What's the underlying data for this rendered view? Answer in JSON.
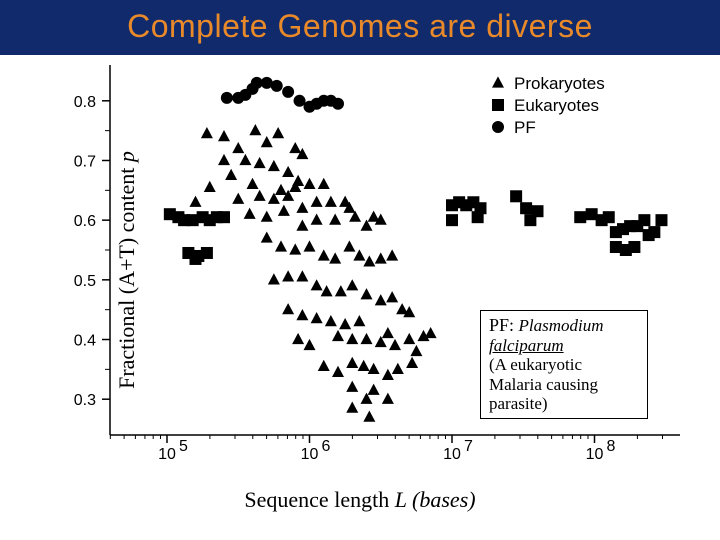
{
  "title": "Complete Genomes are diverse",
  "title_color": "#e98a2a",
  "title_bg": "#102a6b",
  "ylabel_a": "Fractional (A+T) content ",
  "ylabel_b": "p",
  "xlabel_a": "Sequence length ",
  "xlabel_b": "L (bases)",
  "annotation": {
    "line1a": "PF: ",
    "line1b": "Plasmodium",
    "line2": "falciparum",
    "line3": "(A eukaryotic",
    "line4": "Malaria causing",
    "line5": "parasite)"
  },
  "chart": {
    "type": "scatter",
    "x_scale": "log10",
    "xlim_log": [
      4.6,
      8.6
    ],
    "ylim": [
      0.24,
      0.86
    ],
    "x_major_ticks_log": [
      5,
      6,
      7,
      8
    ],
    "x_tick_labels": [
      "10^5",
      "10^6",
      "10^7",
      "10^8"
    ],
    "y_ticks": [
      0.3,
      0.4,
      0.5,
      0.6,
      0.7,
      0.8
    ],
    "y_minor_ticks": [
      0.35,
      0.45,
      0.55,
      0.65,
      0.75
    ],
    "axis_color": "#000000",
    "background_color": "#ffffff",
    "marker_color": "#000000",
    "marker_size": 6,
    "legend": {
      "position": "upper-right",
      "items": [
        {
          "marker": "triangle",
          "label": "Prokaryotes"
        },
        {
          "marker": "square",
          "label": "Eukaryotes"
        },
        {
          "marker": "circle",
          "label": "PF"
        }
      ]
    },
    "series": {
      "pf_circle": [
        [
          5.42,
          0.805
        ],
        [
          5.5,
          0.805
        ],
        [
          5.55,
          0.81
        ],
        [
          5.6,
          0.82
        ],
        [
          5.63,
          0.83
        ],
        [
          5.7,
          0.83
        ],
        [
          5.77,
          0.825
        ],
        [
          5.85,
          0.815
        ],
        [
          5.93,
          0.8
        ],
        [
          6.0,
          0.79
        ],
        [
          6.05,
          0.795
        ],
        [
          6.1,
          0.8
        ],
        [
          6.15,
          0.8
        ],
        [
          6.2,
          0.795
        ]
      ],
      "eukaryote_square": [
        [
          5.02,
          0.61
        ],
        [
          5.08,
          0.605
        ],
        [
          5.12,
          0.6
        ],
        [
          5.18,
          0.6
        ],
        [
          5.25,
          0.605
        ],
        [
          5.3,
          0.6
        ],
        [
          5.35,
          0.605
        ],
        [
          5.4,
          0.605
        ],
        [
          5.15,
          0.545
        ],
        [
          5.22,
          0.54
        ],
        [
          5.28,
          0.545
        ],
        [
          5.2,
          0.535
        ],
        [
          7.0,
          0.625
        ],
        [
          7.05,
          0.63
        ],
        [
          7.1,
          0.625
        ],
        [
          7.15,
          0.63
        ],
        [
          7.2,
          0.62
        ],
        [
          7.18,
          0.605
        ],
        [
          7.0,
          0.6
        ],
        [
          7.45,
          0.64
        ],
        [
          7.52,
          0.62
        ],
        [
          7.55,
          0.6
        ],
        [
          7.6,
          0.615
        ],
        [
          7.9,
          0.605
        ],
        [
          7.98,
          0.61
        ],
        [
          8.05,
          0.6
        ],
        [
          8.1,
          0.605
        ],
        [
          8.15,
          0.58
        ],
        [
          8.2,
          0.585
        ],
        [
          8.25,
          0.59
        ],
        [
          8.3,
          0.59
        ],
        [
          8.35,
          0.6
        ],
        [
          8.38,
          0.575
        ],
        [
          8.42,
          0.58
        ],
        [
          8.47,
          0.6
        ],
        [
          8.15,
          0.555
        ],
        [
          8.22,
          0.55
        ],
        [
          8.28,
          0.555
        ]
      ],
      "prokaryote_triangle": [
        [
          5.28,
          0.745
        ],
        [
          5.4,
          0.74
        ],
        [
          5.62,
          0.75
        ],
        [
          5.7,
          0.73
        ],
        [
          5.78,
          0.745
        ],
        [
          5.5,
          0.72
        ],
        [
          5.9,
          0.72
        ],
        [
          5.95,
          0.71
        ],
        [
          5.4,
          0.7
        ],
        [
          5.55,
          0.7
        ],
        [
          5.65,
          0.695
        ],
        [
          5.75,
          0.69
        ],
        [
          5.85,
          0.68
        ],
        [
          5.92,
          0.665
        ],
        [
          5.45,
          0.675
        ],
        [
          5.6,
          0.66
        ],
        [
          5.8,
          0.65
        ],
        [
          5.9,
          0.655
        ],
        [
          6.0,
          0.66
        ],
        [
          6.1,
          0.66
        ],
        [
          5.5,
          0.635
        ],
        [
          5.65,
          0.64
        ],
        [
          5.75,
          0.635
        ],
        [
          5.85,
          0.64
        ],
        [
          5.95,
          0.62
        ],
        [
          6.05,
          0.63
        ],
        [
          6.15,
          0.63
        ],
        [
          6.25,
          0.63
        ],
        [
          5.58,
          0.61
        ],
        [
          5.7,
          0.605
        ],
        [
          5.82,
          0.615
        ],
        [
          5.95,
          0.59
        ],
        [
          6.05,
          0.6
        ],
        [
          6.18,
          0.6
        ],
        [
          6.28,
          0.62
        ],
        [
          6.32,
          0.605
        ],
        [
          6.4,
          0.59
        ],
        [
          6.45,
          0.605
        ],
        [
          6.5,
          0.6
        ],
        [
          5.7,
          0.57
        ],
        [
          5.8,
          0.555
        ],
        [
          5.9,
          0.55
        ],
        [
          6.0,
          0.555
        ],
        [
          6.1,
          0.54
        ],
        [
          6.18,
          0.535
        ],
        [
          6.28,
          0.555
        ],
        [
          6.35,
          0.54
        ],
        [
          6.42,
          0.53
        ],
        [
          6.5,
          0.535
        ],
        [
          6.58,
          0.54
        ],
        [
          5.75,
          0.5
        ],
        [
          5.85,
          0.505
        ],
        [
          5.95,
          0.505
        ],
        [
          6.05,
          0.49
        ],
        [
          6.12,
          0.48
        ],
        [
          6.22,
          0.48
        ],
        [
          6.3,
          0.49
        ],
        [
          6.4,
          0.475
        ],
        [
          6.5,
          0.465
        ],
        [
          6.58,
          0.47
        ],
        [
          6.65,
          0.45
        ],
        [
          6.7,
          0.445
        ],
        [
          5.85,
          0.45
        ],
        [
          5.95,
          0.44
        ],
        [
          6.05,
          0.435
        ],
        [
          6.15,
          0.43
        ],
        [
          6.25,
          0.425
        ],
        [
          6.35,
          0.43
        ],
        [
          6.2,
          0.405
        ],
        [
          6.3,
          0.4
        ],
        [
          6.4,
          0.4
        ],
        [
          6.5,
          0.395
        ],
        [
          6.55,
          0.41
        ],
        [
          6.6,
          0.39
        ],
        [
          6.7,
          0.4
        ],
        [
          6.75,
          0.38
        ],
        [
          6.8,
          0.405
        ],
        [
          6.85,
          0.41
        ],
        [
          5.92,
          0.4
        ],
        [
          6.0,
          0.39
        ],
        [
          6.1,
          0.355
        ],
        [
          6.2,
          0.345
        ],
        [
          6.3,
          0.36
        ],
        [
          6.38,
          0.355
        ],
        [
          6.45,
          0.35
        ],
        [
          6.55,
          0.34
        ],
        [
          6.62,
          0.35
        ],
        [
          6.72,
          0.36
        ],
        [
          6.3,
          0.32
        ],
        [
          6.45,
          0.315
        ],
        [
          6.4,
          0.3
        ],
        [
          6.55,
          0.3
        ],
        [
          6.3,
          0.285
        ],
        [
          6.42,
          0.27
        ],
        [
          5.3,
          0.655
        ],
        [
          5.2,
          0.63
        ]
      ]
    }
  }
}
